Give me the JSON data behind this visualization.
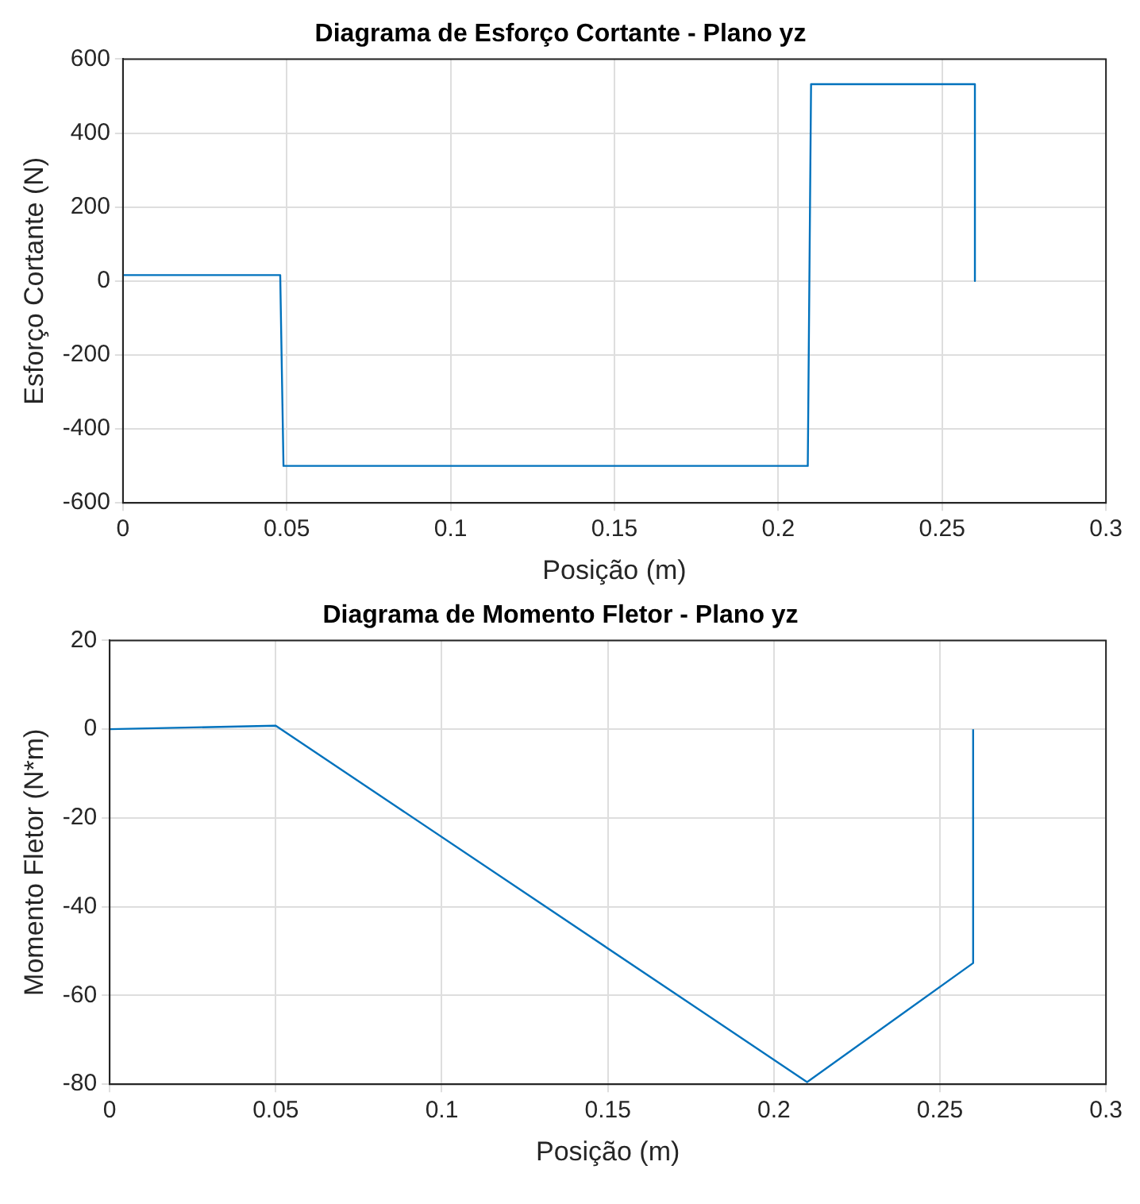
{
  "chart_data": [
    {
      "type": "line",
      "title": "Diagrama de Esforço Cortante - Plano yz",
      "xlabel": "Posição (m)",
      "ylabel": "Esforço Cortante (N)",
      "series": [
        {
          "color": "#0072bd",
          "x": [
            0,
            0.048,
            0.049,
            0.209,
            0.21,
            0.26,
            0.26
          ],
          "values": [
            16,
            16,
            -500,
            -500,
            532,
            532,
            0
          ]
        }
      ],
      "xlim": [
        0,
        0.3
      ],
      "xticks": [
        0,
        0.05,
        0.1,
        0.15,
        0.2,
        0.25,
        0.3
      ],
      "ylim": [
        -600,
        600
      ],
      "yticks": [
        -600,
        -400,
        -200,
        0,
        200,
        400,
        600
      ],
      "grid": true
    },
    {
      "type": "line",
      "title": "Diagrama de Momento Fletor - Plano yz",
      "xlabel": "Posição (m)",
      "ylabel": "Momento Fletor (N*m)",
      "series": [
        {
          "color": "#0072bd",
          "x": [
            0,
            0.05,
            0.21,
            0.26,
            0.26
          ],
          "values": [
            0,
            0.8,
            -79.5,
            -52.7,
            0
          ]
        }
      ],
      "xlim": [
        0,
        0.3
      ],
      "xticks": [
        0,
        0.05,
        0.1,
        0.15,
        0.2,
        0.25,
        0.3
      ],
      "ylim": [
        -80,
        20
      ],
      "yticks": [
        -80,
        -60,
        -40,
        -20,
        0,
        20
      ],
      "grid": true
    }
  ]
}
